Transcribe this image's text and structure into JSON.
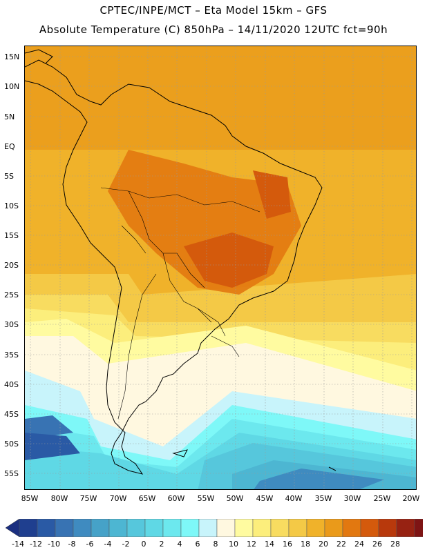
{
  "header": {
    "line1": "CPTEC/INPE/MCT –  Eta Model 15km – GFS",
    "line2": "Absolute Temperature (C) 850hPa – 14/11/2020 12UTC fct=90h"
  },
  "map": {
    "lat_labels": [
      "15N",
      "10N",
      "5N",
      "EQ",
      "5S",
      "10S",
      "15S",
      "20S",
      "25S",
      "30S",
      "35S",
      "40S",
      "45S",
      "50S",
      "55S"
    ],
    "lon_labels": [
      "85W",
      "80W",
      "75W",
      "70W",
      "65W",
      "60W",
      "55W",
      "50W",
      "45W",
      "40W",
      "35W",
      "30W",
      "25W",
      "20W"
    ],
    "lat_range": [
      16.5,
      -57.5
    ],
    "lon_range": [
      -86.5,
      -19.5
    ]
  },
  "colorbar": {
    "labels": [
      "-14",
      "-12",
      "-10",
      "-8",
      "-6",
      "-4",
      "-2",
      "0",
      "2",
      "4",
      "6",
      "8",
      "10",
      "12",
      "14",
      "16",
      "18",
      "20",
      "22",
      "24",
      "26",
      "28"
    ],
    "colors": [
      "#1f3f8f",
      "#2a5aa5",
      "#3873b3",
      "#3f8bc0",
      "#46a2c8",
      "#4db6d2",
      "#56c7dc",
      "#5fd8e5",
      "#6ce8ee",
      "#7ef8f8",
      "#c8f4fb",
      "#fff8e0",
      "#fffba0",
      "#fcee7c",
      "#f8dc60",
      "#f4c946",
      "#f0b22a",
      "#ea9a1a",
      "#e27810",
      "#d45a0c",
      "#b8390c",
      "#972212",
      "#7e1414"
    ],
    "left_arrow_color": "#1b2f80",
    "right_arrow_color": "#7e0b2a"
  }
}
